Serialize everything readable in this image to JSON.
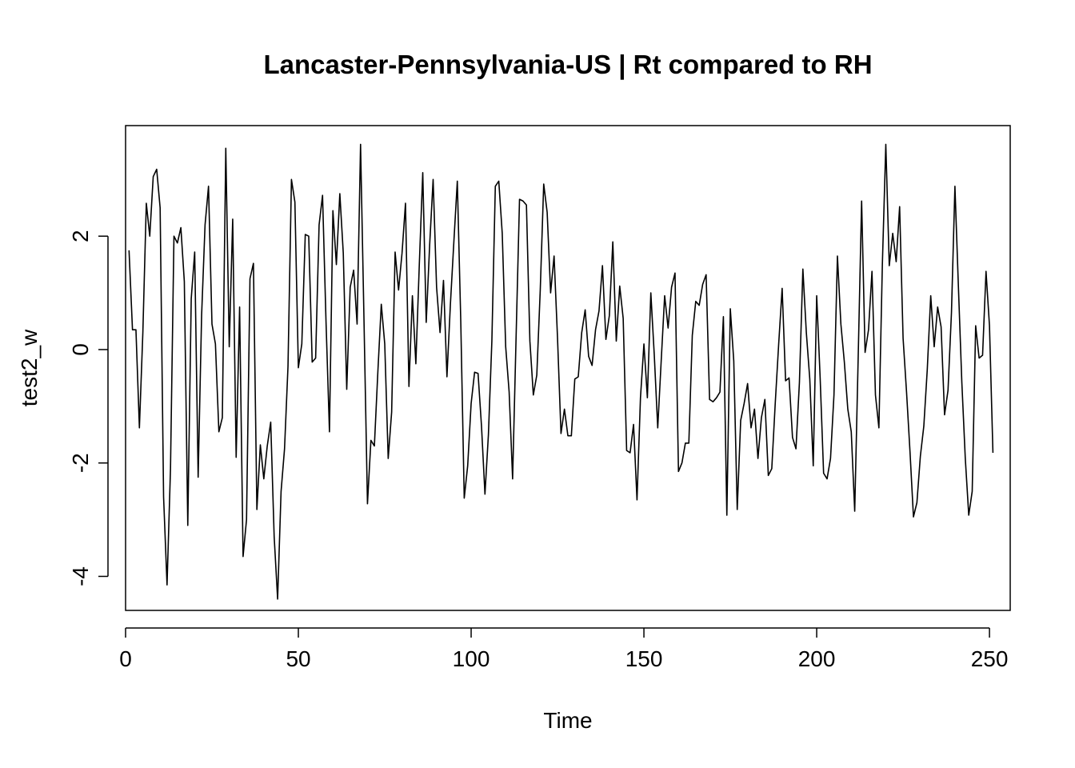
{
  "chart_data": {
    "type": "line",
    "title": "Lancaster-Pennsylvania-US | Rt compared to RH",
    "xlabel": "Time",
    "ylabel": "test2_w",
    "xlim": [
      0,
      256
    ],
    "ylim": [
      -4.6,
      3.95
    ],
    "x_ticks": [
      0,
      50,
      100,
      150,
      200,
      250
    ],
    "y_ticks": [
      -4,
      -2,
      0,
      2
    ],
    "x_tick_labels": [
      "0",
      "50",
      "100",
      "150",
      "200",
      "250"
    ],
    "y_tick_labels": [
      "-4",
      "-2",
      "0",
      "2"
    ],
    "grid": false,
    "line_color": "#000000",
    "x_start": 1,
    "series": [
      {
        "values": [
          1.75,
          0.35,
          0.35,
          -1.38,
          0.3,
          2.58,
          2.0,
          3.05,
          3.18,
          2.5,
          -2.6,
          -4.15,
          -2.1,
          2.0,
          1.88,
          2.15,
          1.2,
          -3.1,
          0.9,
          1.72,
          -2.25,
          0.6,
          2.2,
          2.88,
          0.45,
          0.1,
          -1.45,
          -1.2,
          3.55,
          0.05,
          2.3,
          -1.9,
          0.75,
          -3.65,
          -3.0,
          1.25,
          1.52,
          -2.82,
          -1.68,
          -2.28,
          -1.7,
          -1.28,
          -3.3,
          -4.4,
          -2.5,
          -1.75,
          -0.3,
          3.0,
          2.6,
          -0.32,
          0.1,
          2.03,
          2.0,
          -0.22,
          -0.15,
          2.2,
          2.72,
          0.5,
          -1.45,
          2.45,
          1.5,
          2.75,
          1.7,
          -0.7,
          1.1,
          1.4,
          0.45,
          3.62,
          0.5,
          -2.72,
          -1.6,
          -1.7,
          -0.4,
          0.8,
          0.1,
          -1.92,
          -1.1,
          1.72,
          1.05,
          1.7,
          2.58,
          -0.65,
          0.95,
          -0.25,
          1.5,
          3.12,
          0.48,
          1.85,
          3.0,
          1.1,
          0.3,
          1.22,
          -0.48,
          0.8,
          1.9,
          2.97,
          0.5,
          -2.62,
          -2.05,
          -0.95,
          -0.4,
          -0.42,
          -1.35,
          -2.55,
          -1.5,
          0.15,
          2.88,
          2.97,
          2.05,
          0.05,
          -0.75,
          -2.28,
          0.2,
          2.65,
          2.62,
          2.55,
          0.15,
          -0.8,
          -0.45,
          1.05,
          2.92,
          2.42,
          1.0,
          1.65,
          0.2,
          -1.48,
          -1.05,
          -1.52,
          -1.52,
          -0.52,
          -0.48,
          0.3,
          0.7,
          -0.12,
          -0.28,
          0.35,
          0.68,
          1.48,
          0.18,
          0.6,
          1.9,
          0.15,
          1.12,
          0.55,
          -1.78,
          -1.82,
          -1.32,
          -2.65,
          -0.85,
          0.1,
          -0.85,
          1.0,
          -0.1,
          -1.38,
          -0.2,
          0.95,
          0.38,
          1.1,
          1.35,
          -2.15,
          -2.0,
          -1.65,
          -1.65,
          0.25,
          0.85,
          0.78,
          1.15,
          1.32,
          -0.88,
          -0.92,
          -0.85,
          -0.75,
          0.58,
          -2.92,
          0.72,
          -0.2,
          -2.82,
          -1.25,
          -0.95,
          -0.6,
          -1.38,
          -1.05,
          -1.92,
          -1.2,
          -0.88,
          -2.22,
          -2.1,
          -0.95,
          0.1,
          1.08,
          -0.55,
          -0.5,
          -1.55,
          -1.75,
          -0.58,
          1.42,
          0.3,
          -0.52,
          -2.05,
          0.95,
          -0.5,
          -2.18,
          -2.28,
          -1.92,
          -0.8,
          1.65,
          0.45,
          -0.22,
          -1.05,
          -1.45,
          -2.85,
          -0.15,
          2.62,
          -0.05,
          0.35,
          1.38,
          -0.8,
          -1.38,
          1.5,
          3.62,
          1.48,
          2.05,
          1.55,
          2.52,
          0.2,
          -0.75,
          -1.8,
          -2.95,
          -2.7,
          -1.88,
          -1.35,
          -0.35,
          0.95,
          0.05,
          0.75,
          0.4,
          -1.15,
          -0.72,
          0.65,
          2.88,
          1.12,
          -0.58,
          -1.92,
          -2.92,
          -2.5,
          0.42,
          -0.15,
          -0.1,
          1.38,
          0.42,
          -1.82
        ]
      }
    ]
  }
}
